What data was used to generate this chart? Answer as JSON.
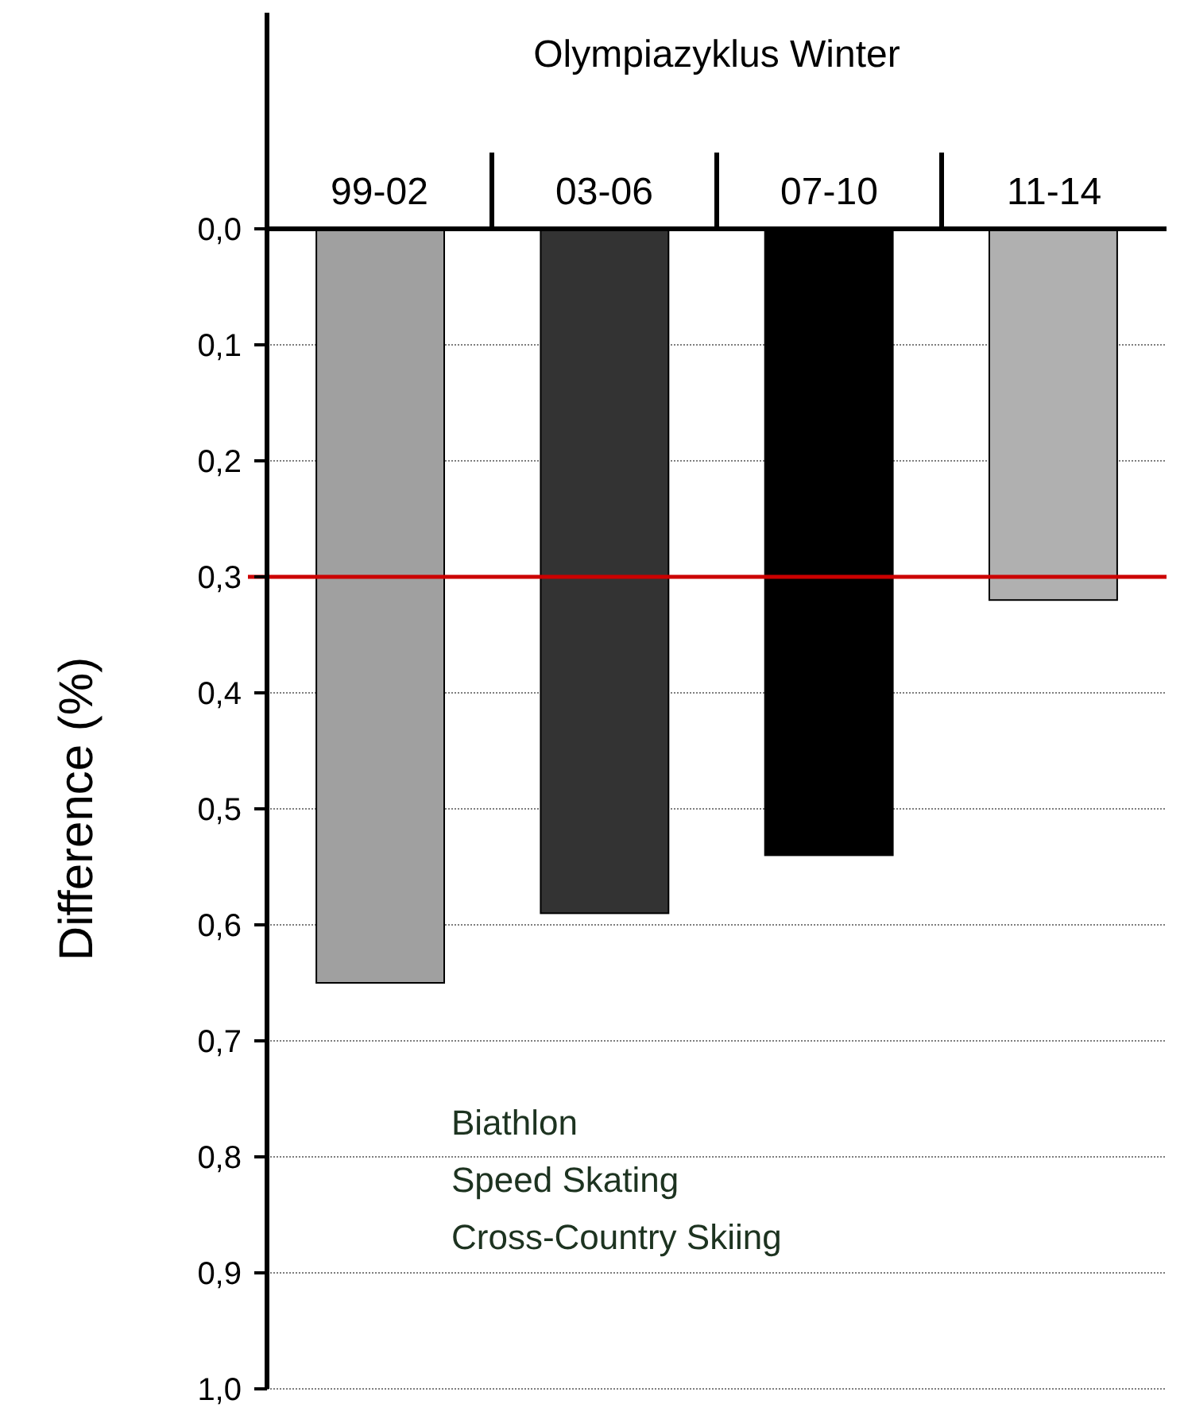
{
  "chart_data": {
    "type": "bar",
    "xlabel": "Olympiazyklus Winter",
    "ylabel": "Difference (%)",
    "categories": [
      "99-02",
      "03-06",
      "07-10",
      "11-14"
    ],
    "values": [
      0.65,
      0.59,
      0.54,
      0.32
    ],
    "colors": [
      "#a0a0a0",
      "#333333",
      "#000000",
      "#b0b0b0"
    ],
    "ylim": [
      1,
      0
    ],
    "yticks": [
      {
        "value": 0,
        "label": "0,0"
      },
      {
        "value": 0.1,
        "label": "0,1"
      },
      {
        "value": 0.2,
        "label": "0,2"
      },
      {
        "value": 0.3,
        "label": "0,3"
      },
      {
        "value": 0.4,
        "label": "0,4"
      },
      {
        "value": 0.5,
        "label": "0,5"
      },
      {
        "value": 0.6,
        "label": "0,6"
      },
      {
        "value": 0.7,
        "label": "0,7"
      },
      {
        "value": 0.8,
        "label": "0,8"
      },
      {
        "value": 0.9,
        "label": "0,9"
      },
      {
        "value": 1,
        "label": "1,0"
      }
    ],
    "grid": "y",
    "ref_lines": [
      {
        "axis": "y",
        "value": 0.3,
        "color": "#cc0000"
      }
    ],
    "annotations": [
      "Biathlon",
      "Speed Skating",
      "Cross-Country Skiing"
    ]
  }
}
